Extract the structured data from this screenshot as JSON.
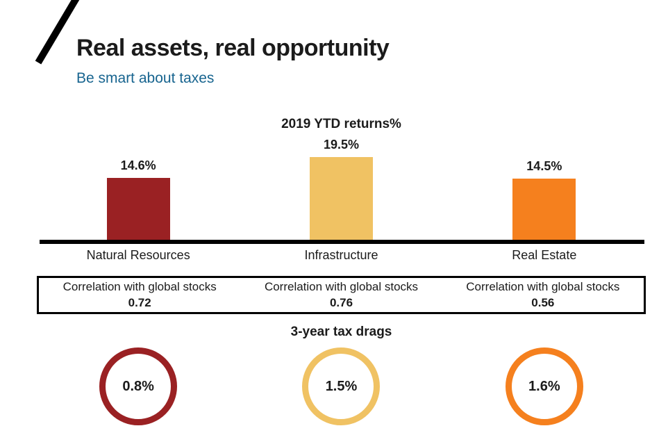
{
  "slide": {
    "title": "Real assets, real opportunity",
    "subtitle": "Be smart about taxes",
    "subtitle_color": "#17648F",
    "logo": "slash-mark"
  },
  "chart_data": {
    "type": "bar",
    "title": "2019 YTD returns%",
    "categories": [
      "Natural Resources",
      "Infrastructure",
      "Real Estate"
    ],
    "values": [
      14.6,
      19.5,
      14.5
    ],
    "value_labels": [
      "14.6%",
      "19.5%",
      "14.5%"
    ],
    "bar_colors": [
      "#9A2123",
      "#F0C263",
      "#F5801E"
    ],
    "axis_color": "#000000",
    "ylim": [
      0,
      19.5
    ],
    "xlabel": "",
    "ylabel": "",
    "grid": false,
    "legend": "none",
    "correlation": {
      "label": "Correlation with global stocks",
      "values": [
        "0.72",
        "0.76",
        "0.56"
      ]
    },
    "tax_drags": {
      "title": "3-year tax drags",
      "values": [
        "0.8%",
        "1.5%",
        "1.6%"
      ],
      "ring_colors": [
        "#9A2123",
        "#F0C263",
        "#F5801E"
      ]
    }
  }
}
